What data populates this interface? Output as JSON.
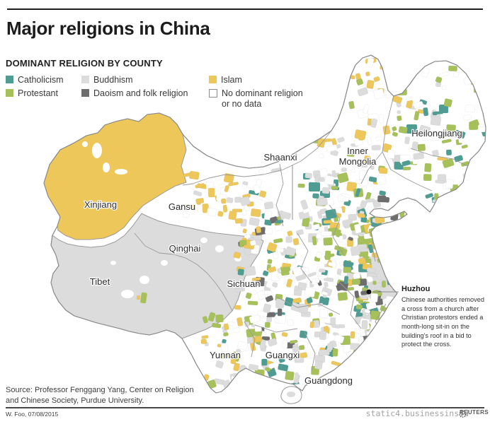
{
  "header": {
    "title": "Major religions in China"
  },
  "legend": {
    "title": "DOMINANT RELIGION BY COUNTY",
    "items": [
      {
        "label": "Catholicism",
        "color": "#4e9c92"
      },
      {
        "label": "Protestant",
        "color": "#a6c159"
      },
      {
        "label": "Buddhism",
        "color": "#dcdcdc"
      },
      {
        "label": "Daoism and folk religion",
        "color": "#6d6d6d"
      },
      {
        "label": "Islam",
        "color": "#edc75a"
      },
      {
        "label": "No dominant religion or no data",
        "color": "#ffffff"
      }
    ]
  },
  "map": {
    "labels": {
      "xinjiang": "Xinjiang",
      "gansu": "Gansu",
      "qinghai": "Qinghai",
      "tibet": "Tibet",
      "sichuan": "Sichuan",
      "yunnan": "Yunnan",
      "guangxi": "Guangxi",
      "guangdong": "Guangdong",
      "shaanxi": "Shaanxi",
      "inner_mongolia_line1": "Inner",
      "inner_mongolia_line2": "Mongolia",
      "heilongjiang": "Heilongjiang"
    },
    "annotation": {
      "title": "Huzhou",
      "body": "Chinese authorities removed a cross from a church after Christian protestors ended a month-long sit-in on the building's roof in a bid to protect the cross."
    },
    "palette": {
      "teal": "#4e9c92",
      "green": "#a6c159",
      "lightgray": "#dcdcdc",
      "darkgray": "#6d6d6d",
      "yellow": "#edc75a",
      "white": "#ffffff",
      "border": "#9a9a9a"
    }
  },
  "source": {
    "line1": "Source: Professor Fenggang Yang, Center on Religion",
    "line2": "and Chinese Society, Purdue University."
  },
  "footer": {
    "credit": "W. Foo, 07/08/2015",
    "watermark": "static4.businessinsid",
    "agency": "REUTERS"
  }
}
